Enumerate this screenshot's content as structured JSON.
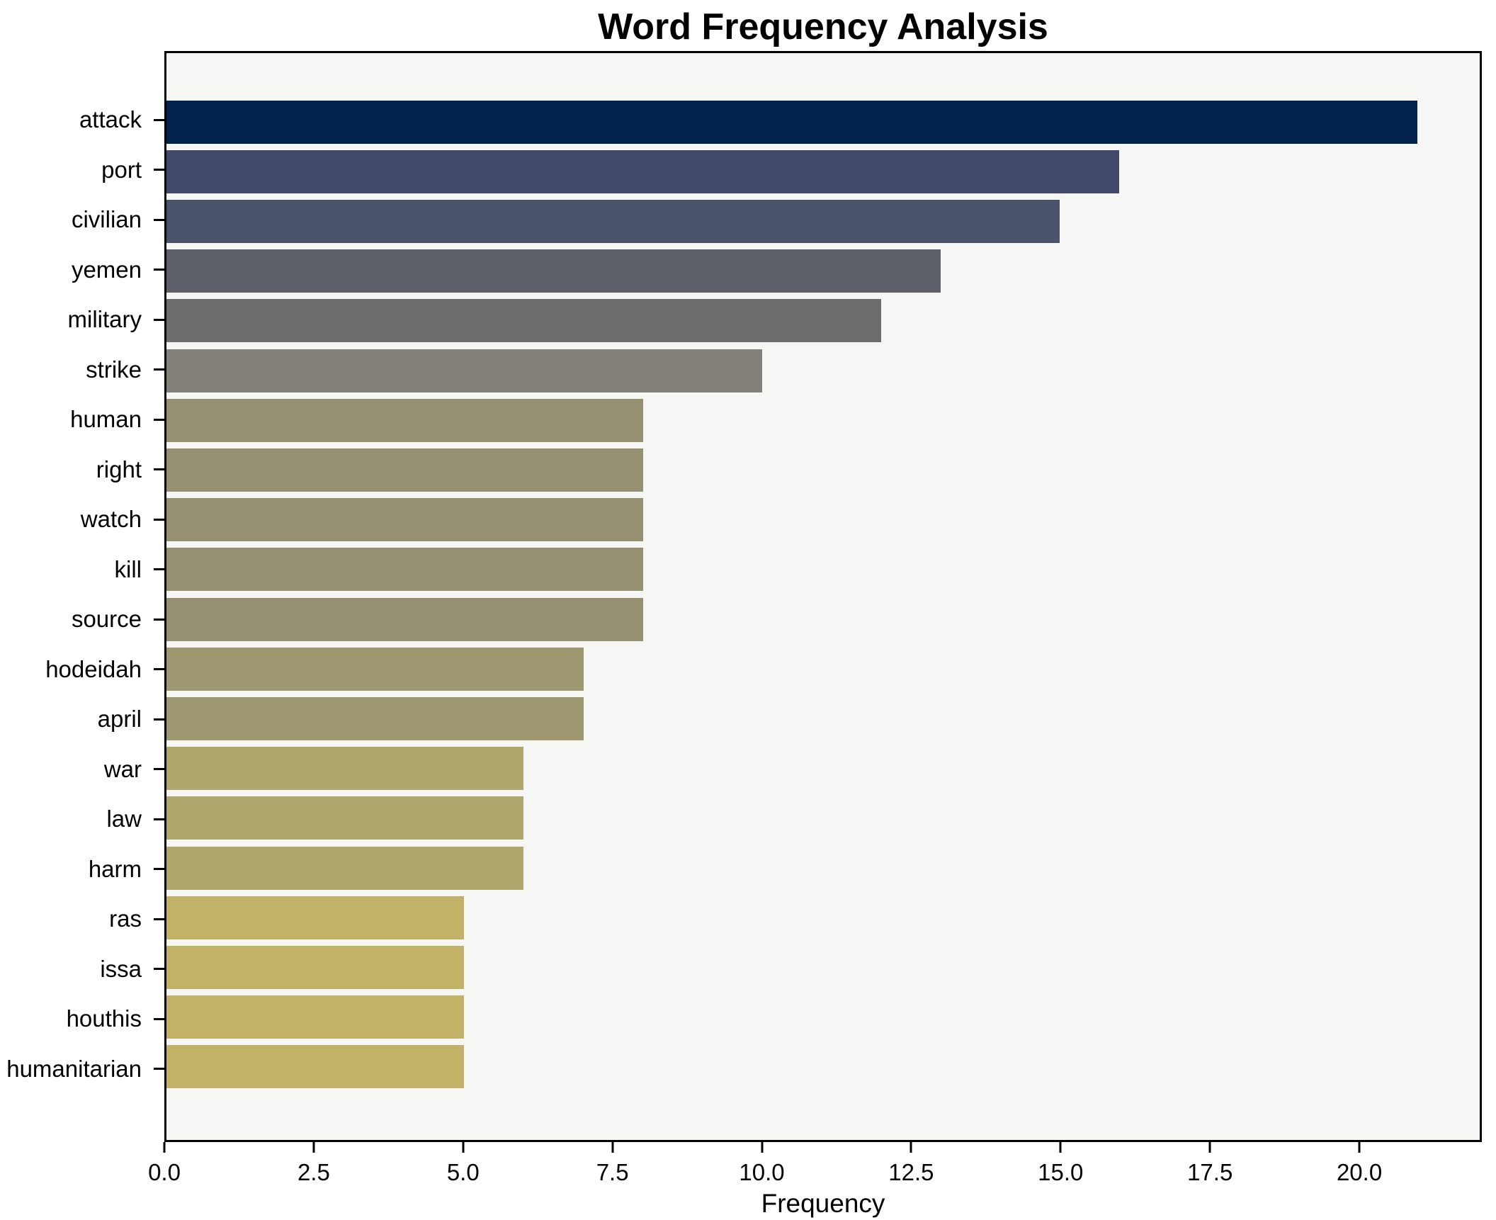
{
  "title": "Word Frequency Analysis",
  "xlabel": "Frequency",
  "chart_data": {
    "type": "bar",
    "orientation": "horizontal",
    "title": "Word Frequency Analysis",
    "xlabel": "Frequency",
    "ylabel": "",
    "grid": false,
    "legend_position": "none",
    "xlim": [
      0,
      22.05
    ],
    "xticks": [
      0.0,
      2.5,
      5.0,
      7.5,
      10.0,
      12.5,
      15.0,
      17.5,
      20.0
    ],
    "plot_background": "#f6f6f4",
    "figure_background": "#ffffff",
    "categories": [
      "attack",
      "port",
      "civilian",
      "yemen",
      "military",
      "strike",
      "human",
      "right",
      "watch",
      "kill",
      "source",
      "hodeidah",
      "april",
      "war",
      "law",
      "harm",
      "ras",
      "issa",
      "houthis",
      "humanitarian"
    ],
    "values": [
      21,
      16,
      15,
      13,
      12,
      10,
      8,
      8,
      8,
      8,
      8,
      7,
      7,
      6,
      6,
      6,
      5,
      5,
      5,
      5
    ],
    "bar_colors": [
      "#02234e",
      "#414a6b",
      "#4b536a",
      "#5e6069",
      "#6c6d6d",
      "#838079",
      "#949071",
      "#949071",
      "#949071",
      "#949071",
      "#949071",
      "#9e9870",
      "#9e9870",
      "#afa76c",
      "#afa76c",
      "#afa76c",
      "#c1b268",
      "#c1b268",
      "#c1b268",
      "#c1b268"
    ]
  }
}
